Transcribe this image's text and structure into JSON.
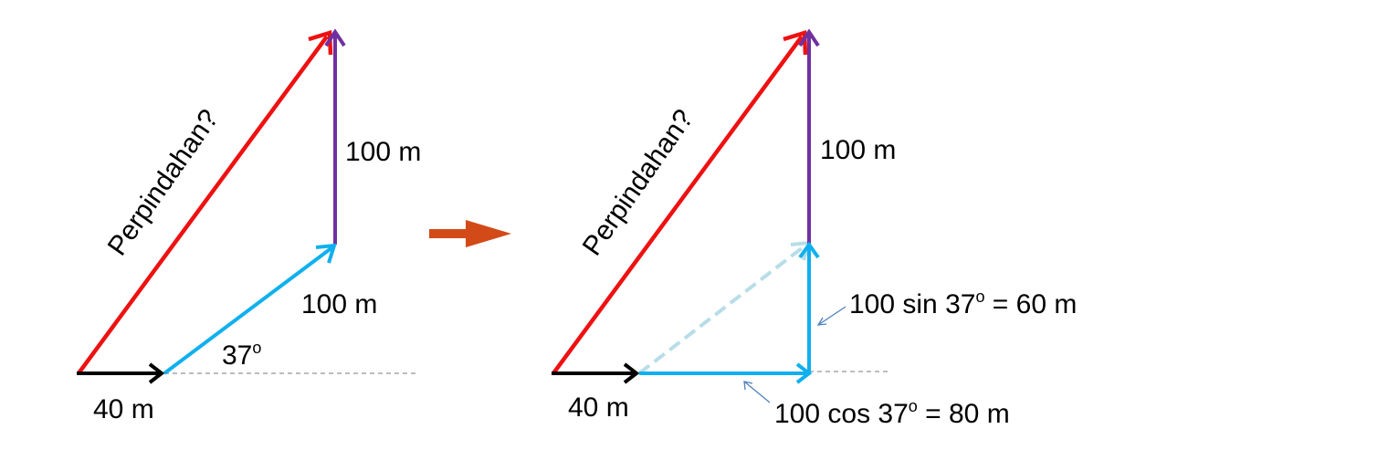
{
  "left_panel": {
    "resultant_label": "Perpindahan?",
    "vertical_label": "100 m",
    "diagonal_label": "100 m",
    "angle_value": "37",
    "angle_unit": "o",
    "horizontal_label": "40 m"
  },
  "right_panel": {
    "resultant_label": "Perpindahan?",
    "vertical_label": "100 m",
    "sin_prefix": "100 sin 37",
    "sin_degree": "o",
    "sin_result": " = 60 m",
    "cos_prefix": "100 cos 37",
    "cos_degree": "o",
    "cos_result": " = 80 m",
    "horizontal_label": "40 m"
  },
  "colors": {
    "resultant": "#ee1111",
    "vertical": "#7030a0",
    "component": "#10b0ee",
    "faded_component": "#b7dde8",
    "start": "#000000",
    "transition_arrow": "#d24a17",
    "reference_line": "#a6a6a6",
    "pointer": "#4f81bd"
  }
}
